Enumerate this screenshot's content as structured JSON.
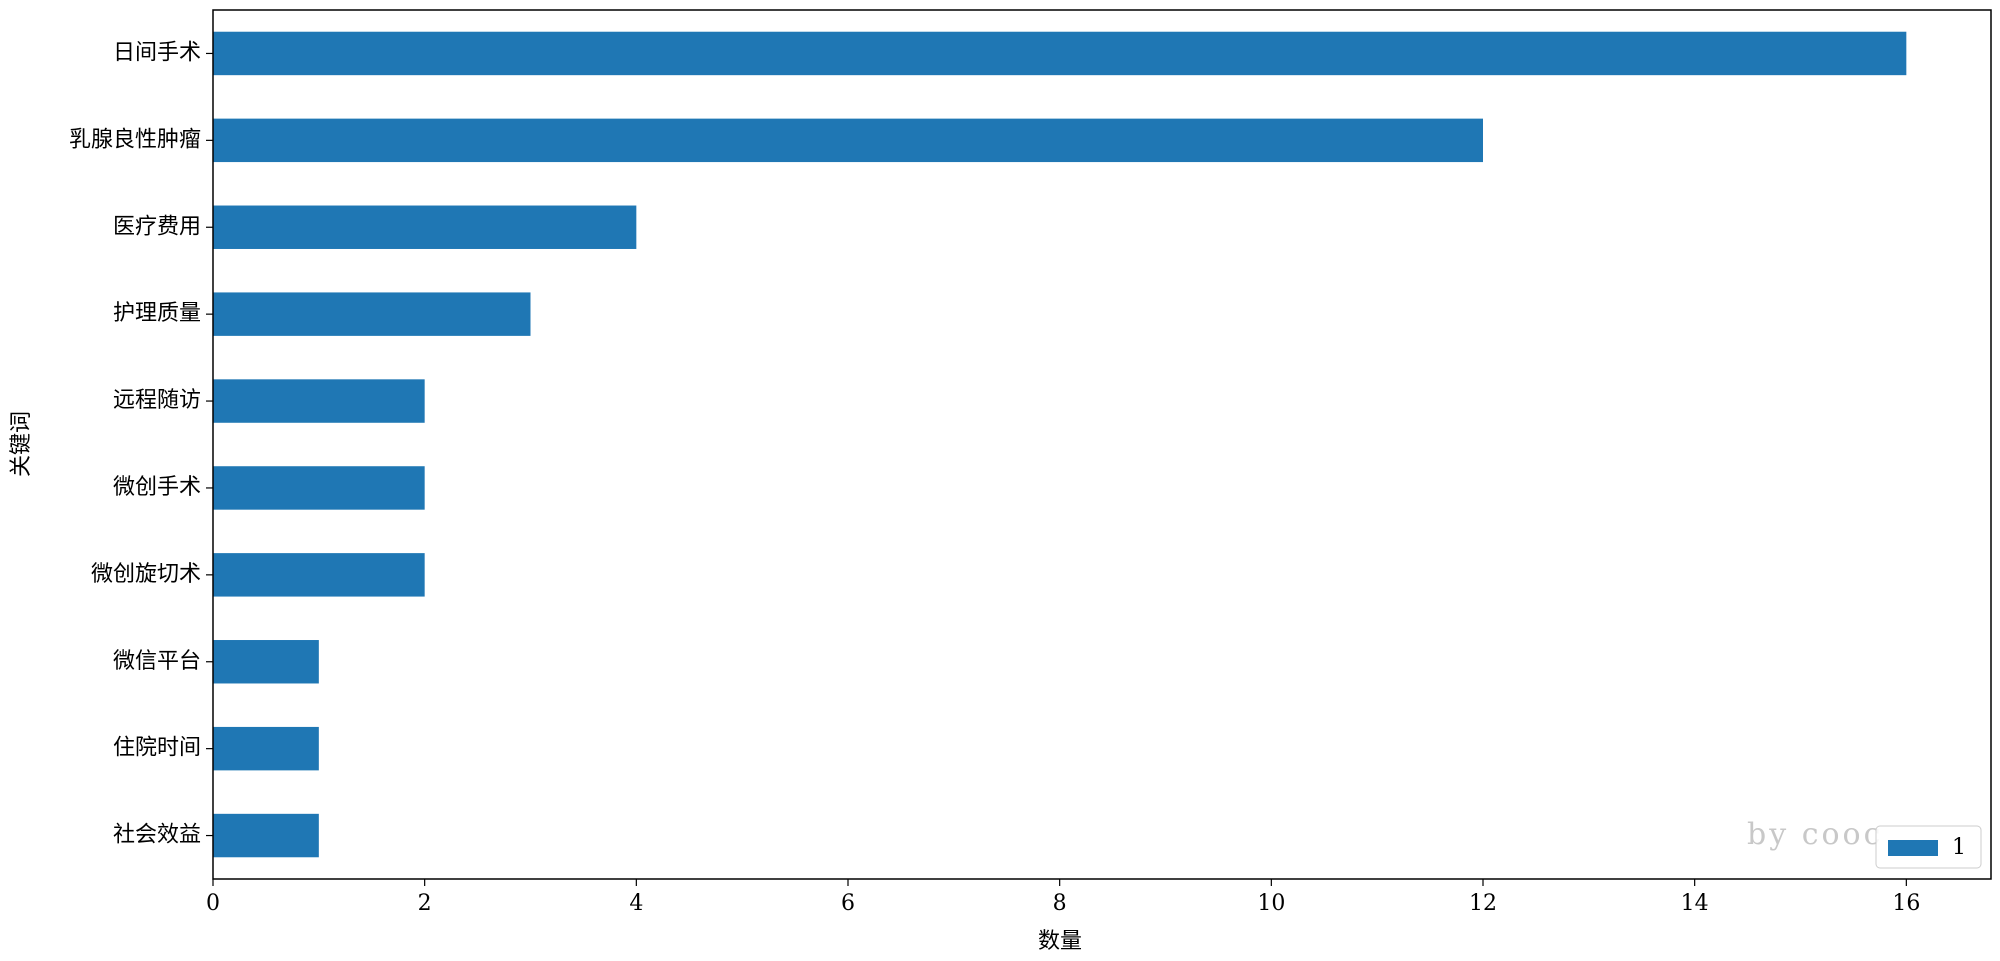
{
  "chart_data": {
    "type": "barh",
    "x_label": "数量",
    "y_label": "关键词",
    "categories": [
      "日间手术",
      "乳腺良性肿瘤",
      "医疗费用",
      "护理质量",
      "远程随访",
      "微创手术",
      "微创旋切术",
      "微信平台",
      "住院时间",
      "社会效益"
    ],
    "series": [
      {
        "name": "1",
        "color": "#1f77b4",
        "values": [
          16,
          12,
          4,
          3,
          2,
          2,
          2,
          1,
          1,
          1
        ]
      }
    ],
    "xlim": [
      0,
      16.8
    ],
    "xticks": [
      0,
      2,
      4,
      6,
      8,
      10,
      12,
      14,
      16
    ],
    "legend": "lower right",
    "watermark": "by cooc"
  }
}
